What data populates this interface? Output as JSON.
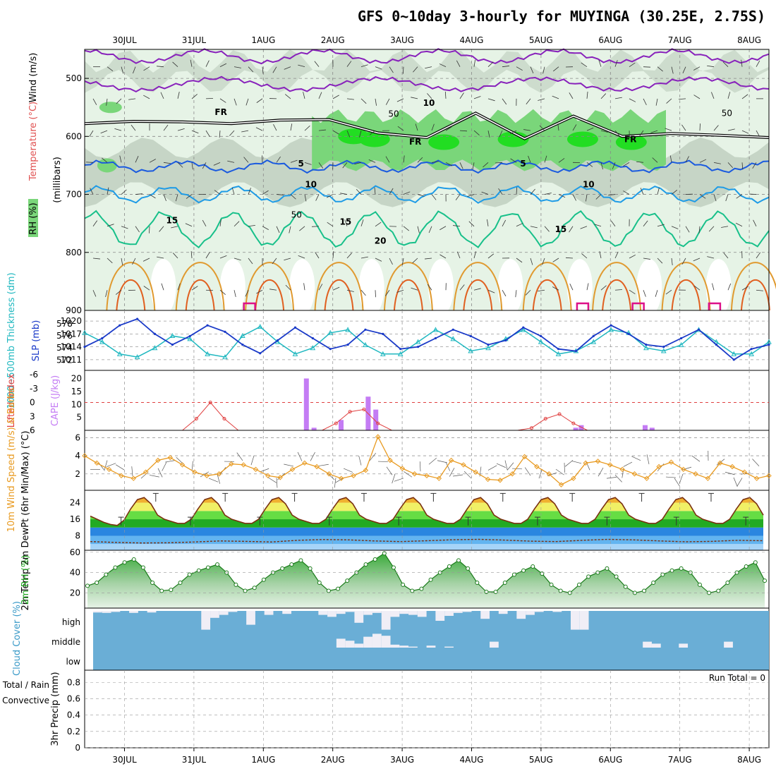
{
  "title": "GFS 0~10day 3-hourly for MUYINGA (30.25E, 2.75S)",
  "date_labels": [
    "30JUL",
    "31JUL",
    "1AUG",
    "2AUG",
    "3AUG",
    "4AUG",
    "5AUG",
    "6AUG",
    "7AUG",
    "8AUG"
  ],
  "colors": {
    "rh_light": "#e6f3e6",
    "rh_mid": "#c2d2c2",
    "rh_green": "#7ad67a",
    "rh_bright": "#22dd22",
    "temp_purple": "#8822bb",
    "temp_blue": "#1a5adf",
    "temp_cyan": "#1e9be6",
    "temp_teal": "#18c08a",
    "temp_orange": "#e09a30",
    "temp_red": "#e06020",
    "temp_magenta": "#dd1188",
    "thickness": "#20b8c0",
    "slp": "#1a3ac8",
    "lifted": "#e04040",
    "cape": "#c47cf4",
    "wind10": "#e89a20",
    "cloud": "#6aaed6"
  },
  "chart_data": [
    {
      "panel": "upper_air",
      "type": "heatmap",
      "ylabel": "(millibars)",
      "legend_labels": [
        "RH (%)",
        "Temperature (°C)",
        "Wind (m/s)"
      ],
      "y_ticks": [
        500,
        600,
        700,
        800,
        900
      ],
      "ylim": [
        900,
        450
      ],
      "contour_labels": [
        "FR",
        "FR",
        "FR",
        "5",
        "5",
        "10",
        "10",
        "15",
        "15",
        "15",
        "20",
        "50",
        "50",
        "50",
        "10"
      ],
      "freezing_level_mb": [
        578,
        574,
        575,
        578,
        572,
        571,
        594,
        602,
        560,
        604,
        565,
        600,
        595,
        598,
        602
      ]
    },
    {
      "panel": "thickness_slp",
      "type": "line",
      "ylabel_left": "1000~500mb Thickness (dm)",
      "ylabel_right": "SLP (mb)",
      "left_ticks": [
        578,
        576,
        574,
        572
      ],
      "right_ticks": [
        1020,
        1017,
        1014,
        1011
      ],
      "series": [
        {
          "name": "1000~500mb Thickness (dm)",
          "values": [
            576.5,
            575.0,
            573.0,
            572.5,
            574.0,
            576.0,
            575.5,
            573.0,
            572.5,
            576.0,
            577.5,
            575.0,
            573.0,
            574.0,
            576.5,
            577.0,
            574.5,
            573.0,
            573.0,
            575.0,
            577.0,
            575.5,
            573.5,
            574.0,
            575.5,
            577.0,
            575.0,
            573.0,
            573.5,
            575.0,
            577.0,
            576.5,
            574.0,
            573.5,
            574.5,
            577.0,
            575.0,
            573.0,
            573.0,
            575.0
          ]
        },
        {
          "name": "SLP (mb)",
          "values": [
            1014.0,
            1016.0,
            1019.0,
            1020.5,
            1017.0,
            1014.5,
            1016.5,
            1019.0,
            1017.5,
            1014.5,
            1012.5,
            1015.5,
            1018.5,
            1016.0,
            1013.5,
            1014.5,
            1018.0,
            1017.0,
            1013.5,
            1014.0,
            1016.0,
            1018.0,
            1016.5,
            1014.5,
            1015.5,
            1018.5,
            1016.5,
            1013.5,
            1013.0,
            1016.5,
            1019.0,
            1017.0,
            1014.5,
            1014.0,
            1016.0,
            1018.0,
            1014.5,
            1011.0,
            1013.5,
            1014.5
          ]
        }
      ]
    },
    {
      "panel": "stability",
      "type": "bar",
      "ylabel_left": "Lifted Index",
      "ylabel_right": "CAPE (J/kg)",
      "left_ticks": [
        -6,
        -3,
        0,
        3,
        6
      ],
      "right_ticks": [
        20,
        15,
        10,
        5
      ],
      "lifted_index": [
        6,
        6,
        6,
        6,
        6,
        6,
        6,
        6,
        3.5,
        0,
        3.5,
        6,
        6,
        6,
        6,
        6,
        6,
        6,
        4.5,
        2,
        1.5,
        4.5,
        6,
        6,
        6,
        6,
        6,
        6,
        6,
        6,
        6,
        6,
        5.5,
        3.5,
        2.5,
        4.5,
        6,
        6,
        6,
        6,
        6,
        6,
        6,
        6,
        6,
        6,
        6,
        6,
        6,
        6
      ],
      "cape_bars": [
        {
          "day": 3.62,
          "value": 20
        },
        {
          "day": 3.73,
          "value": 1
        },
        {
          "day": 4.12,
          "value": 4
        },
        {
          "day": 4.51,
          "value": 13
        },
        {
          "day": 4.62,
          "value": 8
        },
        {
          "day": 7.5,
          "value": 1
        },
        {
          "day": 7.58,
          "value": 2
        },
        {
          "day": 8.5,
          "value": 2
        },
        {
          "day": 8.6,
          "value": 1
        }
      ]
    },
    {
      "panel": "wind10m",
      "type": "line",
      "ylabel": "10m Wind Speed (m/s) & Barbs",
      "y_ticks": [
        2,
        4,
        6
      ],
      "series": [
        {
          "name": "10m Wind Speed",
          "values": [
            4.0,
            3.2,
            2.5,
            1.8,
            1.5,
            2.2,
            3.5,
            3.8,
            3.0,
            2.2,
            1.8,
            2.0,
            3.1,
            3.0,
            2.5,
            1.8,
            1.6,
            2.5,
            3.2,
            2.8,
            2.0,
            1.5,
            1.8,
            2.4,
            6.1,
            3.5,
            2.6,
            2.0,
            1.8,
            1.5,
            3.5,
            3.0,
            2.2,
            1.4,
            1.3,
            2.0,
            3.9,
            2.8,
            2.0,
            0.8,
            1.5,
            3.2,
            3.4,
            3.0,
            2.5,
            2.0,
            1.5,
            2.8,
            3.3,
            2.5,
            2.0,
            1.5,
            3.2,
            2.8,
            2.2,
            1.5,
            1.8
          ]
        }
      ]
    },
    {
      "panel": "temperature2m",
      "type": "area",
      "ylabel": "2m Temp 2m DewPt (6hr Min/Max) (°C)",
      "y_ticks": [
        8,
        16,
        24
      ],
      "series": [
        {
          "name": "2m Temp",
          "values": [
            17.5,
            16,
            14.5,
            13.5,
            13,
            15.5,
            21,
            25.5,
            26.5,
            23.5,
            18,
            16,
            15,
            14,
            14,
            16,
            21,
            25.5,
            26.5,
            23.5,
            18,
            16,
            15,
            14,
            14,
            16,
            21,
            25.5,
            26.5,
            23.5,
            18,
            16,
            15,
            14,
            14,
            16,
            21,
            25.5,
            26.5,
            23.5,
            18,
            16,
            15,
            14,
            14,
            16,
            21,
            25.5,
            26.5,
            23.5,
            18,
            16,
            15,
            14,
            14,
            16,
            21,
            25.5,
            26.5,
            23.5,
            18,
            16,
            15,
            14,
            14,
            16,
            21,
            25.5,
            26.5,
            23.5,
            18,
            16,
            15,
            14,
            14,
            16,
            21,
            25.5,
            26.5,
            23.5,
            18,
            16,
            15,
            14,
            14,
            16,
            21,
            25.5,
            26.5,
            23.5,
            18,
            16,
            15,
            14,
            14,
            16,
            21,
            25.5,
            26.5,
            23.5,
            18
          ]
        },
        {
          "name": "2m DewPt",
          "values": [
            5.2,
            4.8,
            4.5,
            4.6,
            5.0,
            5.5,
            5.3,
            5.0,
            5.8,
            6.2,
            6.0,
            5.5,
            5.2,
            5.6,
            6.1,
            6.3,
            5.9,
            5.4,
            5.2,
            5.8,
            6.3,
            6.0,
            5.5,
            5.1,
            5.3,
            5.8,
            5.6
          ]
        }
      ]
    },
    {
      "panel": "rh2m",
      "type": "area",
      "ylabel": "2m RH (%)",
      "y_ticks": [
        20,
        40,
        60
      ],
      "series": [
        {
          "name": "2m RH",
          "values": [
            27,
            30,
            38,
            45,
            50,
            53,
            45,
            30,
            22,
            23,
            30,
            38,
            42,
            45,
            48,
            40,
            28,
            22,
            25,
            33,
            40,
            44,
            48,
            52,
            44,
            30,
            22,
            24,
            32,
            40,
            48,
            53,
            59,
            45,
            28,
            22,
            24,
            33,
            40,
            46,
            52,
            44,
            30,
            21,
            21,
            30,
            38,
            42,
            46,
            39,
            28,
            22,
            20,
            28,
            36,
            40,
            44,
            36,
            26,
            20,
            22,
            30,
            38,
            42,
            44,
            40,
            28,
            20,
            22,
            30,
            40,
            46,
            50,
            32
          ]
        }
      ]
    },
    {
      "panel": "cloud",
      "type": "heatmap",
      "ylabel": "Cloud Cover (%)",
      "levels": [
        "high",
        "middle",
        "low"
      ],
      "high": [
        8,
        10,
        5,
        0,
        10,
        0,
        8,
        0,
        0,
        0,
        0,
        0,
        95,
        35,
        20,
        5,
        0,
        70,
        0,
        20,
        0,
        15,
        0,
        0,
        0,
        20,
        30,
        15,
        5,
        60,
        20,
        10,
        95,
        30,
        15,
        20,
        30,
        0,
        50,
        25,
        10,
        5,
        0,
        40,
        0,
        15,
        0,
        40,
        20,
        5,
        0,
        5,
        0,
        95,
        95,
        0,
        0,
        0,
        0,
        0,
        0,
        0,
        0,
        0,
        0,
        0,
        0,
        0,
        0,
        0,
        0,
        0,
        0,
        0,
        0
      ],
      "middle": [
        0,
        0,
        0,
        0,
        0,
        0,
        0,
        0,
        0,
        0,
        0,
        0,
        0,
        0,
        0,
        0,
        0,
        0,
        0,
        0,
        0,
        0,
        0,
        0,
        0,
        0,
        0,
        45,
        35,
        20,
        55,
        70,
        60,
        15,
        10,
        5,
        0,
        10,
        0,
        5,
        0,
        0,
        0,
        0,
        30,
        0,
        0,
        0,
        0,
        0,
        0,
        0,
        0,
        0,
        0,
        0,
        0,
        0,
        0,
        0,
        0,
        30,
        20,
        0,
        0,
        20,
        0,
        0,
        0,
        0,
        30,
        0,
        0,
        0,
        0
      ]
    },
    {
      "panel": "precip",
      "type": "bar",
      "ylabel": "3hr Precip (mm)",
      "legend_labels": [
        "Total / Rain",
        "Convective"
      ],
      "y_ticks": [
        0,
        0.2,
        0.4,
        0.6,
        0.8
      ],
      "ylim": [
        0,
        0.95
      ],
      "run_total_label": "Run Total = 0",
      "values": []
    }
  ]
}
